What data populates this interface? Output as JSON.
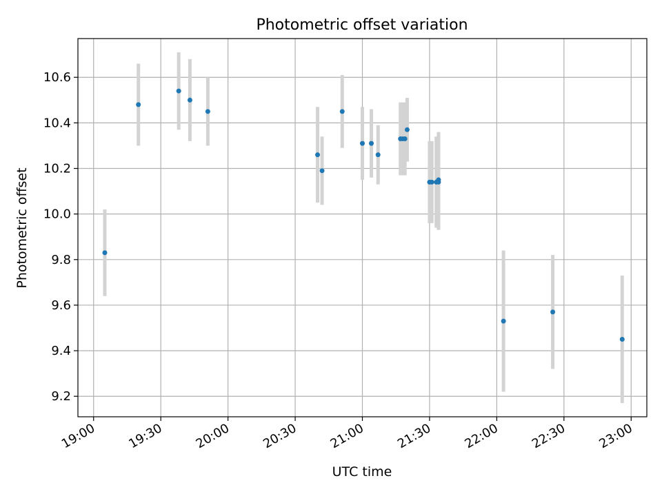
{
  "chart_data": {
    "type": "scatter",
    "title": "Photometric offset variation",
    "xlabel": "UTC time",
    "ylabel": "Photometric offset",
    "xlim": [
      "18:53",
      "23:07"
    ],
    "ylim": [
      9.11,
      10.77
    ],
    "xticks": [
      "19:00",
      "19:30",
      "20:00",
      "20:30",
      "21:00",
      "21:30",
      "22:00",
      "22:30",
      "23:00"
    ],
    "yticks": [
      9.2,
      9.4,
      9.6,
      9.8,
      10.0,
      10.2,
      10.4,
      10.6
    ],
    "grid": true,
    "colors": {
      "points": "#1f77b4",
      "errorbars": "#d3d3d3",
      "grid": "#b0b0b0"
    },
    "series": [
      {
        "points": [
          {
            "x": "19:05",
            "y": 9.83,
            "err": 0.19
          },
          {
            "x": "19:20",
            "y": 10.48,
            "err": 0.18
          },
          {
            "x": "19:38",
            "y": 10.54,
            "err": 0.17
          },
          {
            "x": "19:43",
            "y": 10.5,
            "err": 0.18
          },
          {
            "x": "19:51",
            "y": 10.45,
            "err": 0.15
          },
          {
            "x": "20:40",
            "y": 10.26,
            "err": 0.21
          },
          {
            "x": "20:42",
            "y": 10.19,
            "err": 0.15
          },
          {
            "x": "20:51",
            "y": 10.45,
            "err": 0.16
          },
          {
            "x": "21:00",
            "y": 10.31,
            "err": 0.16
          },
          {
            "x": "21:04",
            "y": 10.31,
            "err": 0.15
          },
          {
            "x": "21:07",
            "y": 10.26,
            "err": 0.13
          },
          {
            "x": "21:17",
            "y": 10.33,
            "err": 0.16
          },
          {
            "x": "21:18",
            "y": 10.33,
            "err": 0.16
          },
          {
            "x": "21:19",
            "y": 10.33,
            "err": 0.16
          },
          {
            "x": "21:20",
            "y": 10.37,
            "err": 0.14
          },
          {
            "x": "21:30",
            "y": 10.14,
            "err": 0.18
          },
          {
            "x": "21:31",
            "y": 10.14,
            "err": 0.18
          },
          {
            "x": "21:33",
            "y": 10.14,
            "err": 0.2
          },
          {
            "x": "21:34",
            "y": 10.15,
            "err": 0.21
          },
          {
            "x": "21:34",
            "y": 10.14,
            "err": 0.21
          },
          {
            "x": "22:03",
            "y": 9.53,
            "err": 0.31
          },
          {
            "x": "22:25",
            "y": 9.57,
            "err": 0.25
          },
          {
            "x": "22:56",
            "y": 9.45,
            "err": 0.28
          }
        ]
      }
    ]
  }
}
